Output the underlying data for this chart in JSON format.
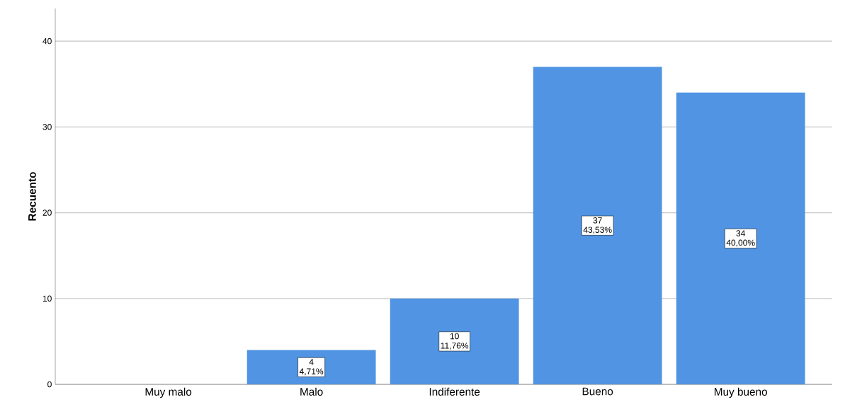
{
  "chart_data": {
    "type": "bar",
    "ylabel": "Recuento",
    "categories": [
      "Muy malo",
      "Malo",
      "Indiferente",
      "Bueno",
      "Muy bueno"
    ],
    "values": [
      0,
      4,
      10,
      37,
      34
    ],
    "value_labels": [
      null,
      [
        "4",
        "4,71%"
      ],
      [
        "10",
        "11,76%"
      ],
      [
        "37",
        "43,53%"
      ],
      [
        "34",
        "40,00%"
      ]
    ],
    "color": "#5094e3",
    "ylim": [
      0,
      43.8
    ],
    "yticks": [
      0,
      10,
      20,
      30,
      40
    ],
    "grid": "y"
  }
}
